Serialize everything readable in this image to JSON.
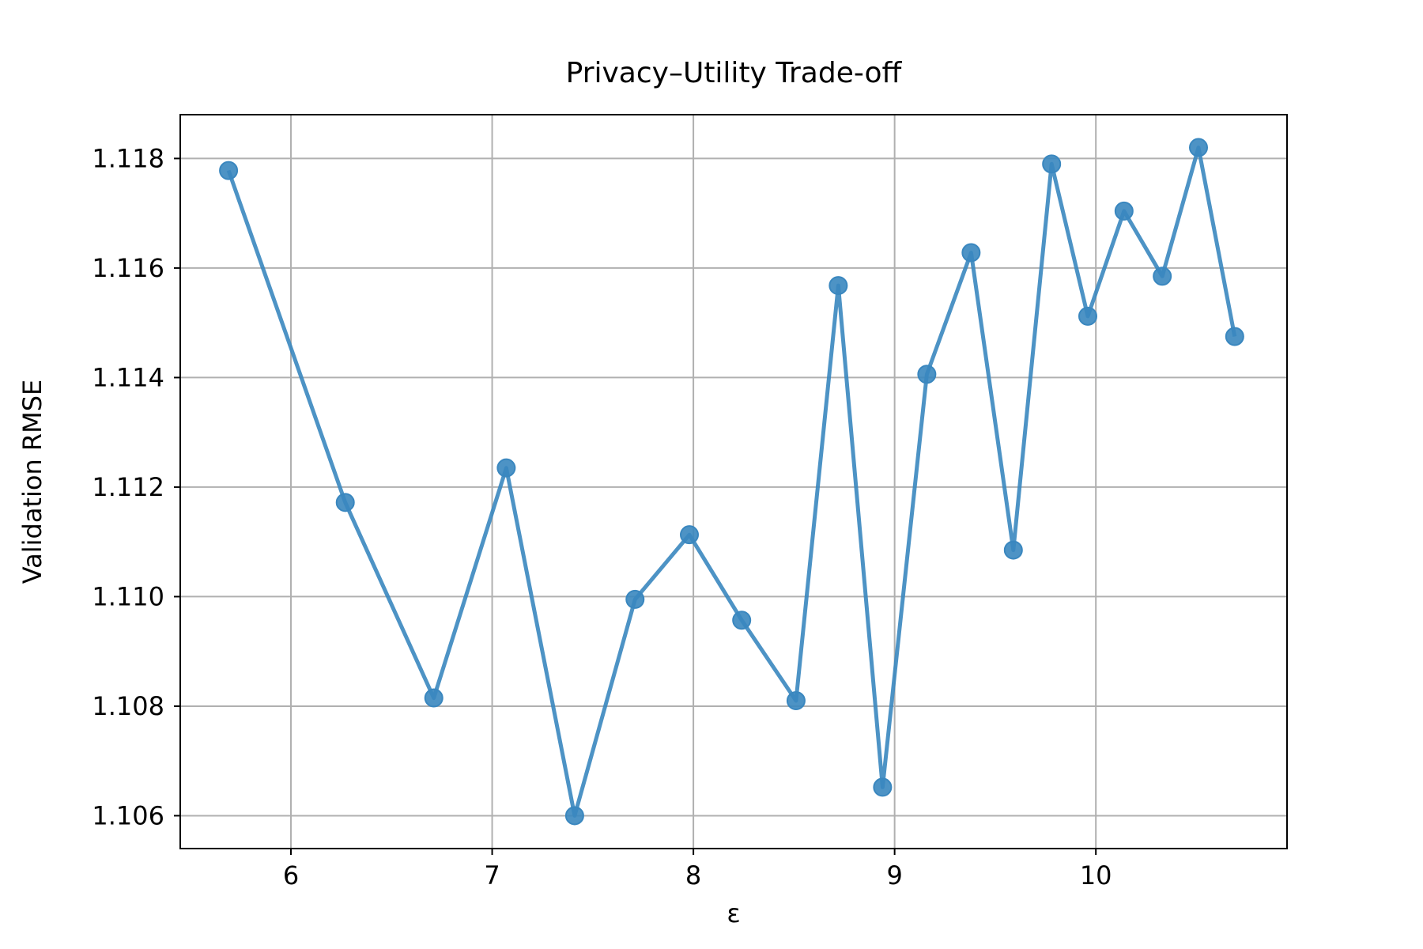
{
  "chart_data": {
    "type": "line",
    "title": "Privacy–Utility Trade-off",
    "xlabel": "ε",
    "ylabel": "Validation RMSE",
    "xlim": [
      5.45,
      10.95
    ],
    "ylim": [
      1.1054,
      1.1188
    ],
    "xticks": [
      6,
      7,
      8,
      9,
      10
    ],
    "xtick_labels": [
      "6",
      "7",
      "8",
      "9",
      "10"
    ],
    "yticks": [
      1.106,
      1.108,
      1.11,
      1.112,
      1.114,
      1.116,
      1.118
    ],
    "ytick_labels": [
      "1.106",
      "1.108",
      "1.110",
      "1.112",
      "1.114",
      "1.116",
      "1.118"
    ],
    "grid": true,
    "color": "#3a87bf",
    "series": [
      {
        "marker": "circle",
        "points": [
          {
            "x": 5.69,
            "y": 1.11778
          },
          {
            "x": 6.27,
            "y": 1.11172
          },
          {
            "x": 6.71,
            "y": 1.10815
          },
          {
            "x": 7.07,
            "y": 1.11235
          },
          {
            "x": 7.41,
            "y": 1.106
          },
          {
            "x": 7.71,
            "y": 1.10995
          },
          {
            "x": 7.98,
            "y": 1.11113
          },
          {
            "x": 8.24,
            "y": 1.10957
          },
          {
            "x": 8.51,
            "y": 1.1081
          },
          {
            "x": 8.72,
            "y": 1.11568
          },
          {
            "x": 8.94,
            "y": 1.10652
          },
          {
            "x": 9.16,
            "y": 1.11406
          },
          {
            "x": 9.38,
            "y": 1.11628
          },
          {
            "x": 9.59,
            "y": 1.11085
          },
          {
            "x": 9.78,
            "y": 1.1179
          },
          {
            "x": 9.96,
            "y": 1.11512
          },
          {
            "x": 10.14,
            "y": 1.11704
          },
          {
            "x": 10.33,
            "y": 1.11585
          },
          {
            "x": 10.51,
            "y": 1.1182
          },
          {
            "x": 10.69,
            "y": 1.11475
          }
        ]
      }
    ]
  }
}
